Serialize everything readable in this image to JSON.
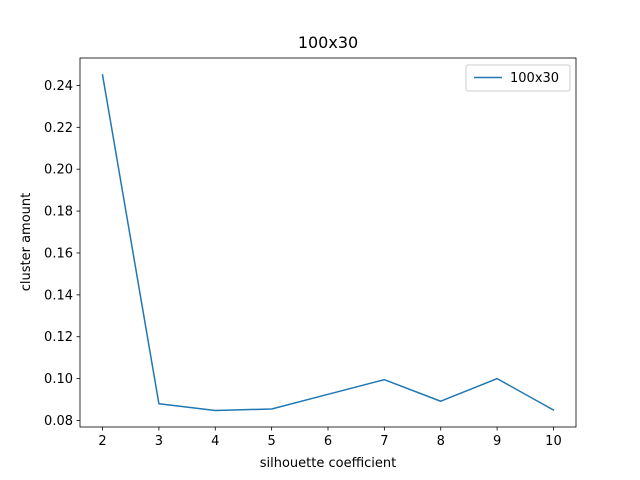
{
  "chart_data": {
    "type": "line",
    "title": "100x30",
    "xlabel": "silhouette coefficient",
    "ylabel": "cluster amount",
    "x": [
      2,
      3,
      4,
      5,
      6,
      7,
      8,
      9,
      10
    ],
    "series": [
      {
        "name": "100x30",
        "color": "#1f77b4",
        "values": [
          0.245,
          0.088,
          0.0848,
          0.0855,
          0.0925,
          0.0995,
          0.0892,
          0.1,
          0.085
        ]
      }
    ],
    "xlim": [
      1.6,
      10.4
    ],
    "ylim": [
      0.0769,
      0.2531
    ],
    "xticks": [
      "2",
      "3",
      "4",
      "5",
      "6",
      "7",
      "8",
      "9",
      "10"
    ],
    "yticks": [
      "0.08",
      "0.10",
      "0.12",
      "0.14",
      "0.16",
      "0.18",
      "0.20",
      "0.22",
      "0.24"
    ],
    "grid": false,
    "legend": "upper-right"
  }
}
